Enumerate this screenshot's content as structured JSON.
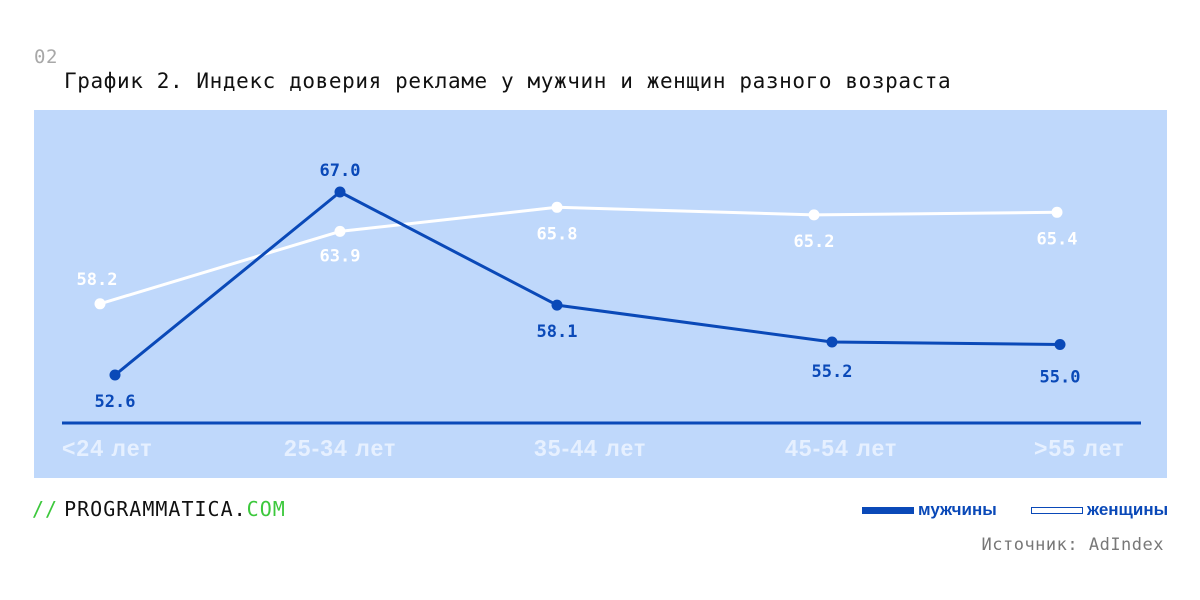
{
  "header": {
    "figure_number": "02",
    "title": "График 2. Индекс доверия рекламе у мужчин и женщин разного возраста"
  },
  "colors": {
    "panel_bg": "#bfd8fb",
    "men": "#0a49b8",
    "women": "#ffffff",
    "axis_label": "#e6f0ff",
    "logo_accent": "#3cc83c",
    "source_text": "#777777"
  },
  "footer": {
    "logo_slashes": "//",
    "logo_main": "PROGRAMMATICA.",
    "logo_tld": "COM",
    "legend": {
      "men": "мужчины",
      "women": "женщины"
    },
    "source": "Источник: AdIndex"
  },
  "chart_data": {
    "type": "line",
    "title": "График 2. Индекс доверия рекламе у мужчин и женщин разного возраста",
    "xlabel": "",
    "ylabel": "",
    "categories": [
      "<24 лет",
      "25-34 лет",
      "35-44 лет",
      "45-54 лет",
      ">55 лет"
    ],
    "series": [
      {
        "name": "мужчины",
        "color": "#0a49b8",
        "values": [
          52.6,
          67.0,
          58.1,
          55.2,
          55.0
        ],
        "labels": [
          "52.6",
          "67.0",
          "58.1",
          "55.2",
          "55.0"
        ]
      },
      {
        "name": "женщины",
        "color": "#ffffff",
        "values": [
          58.2,
          63.9,
          65.8,
          65.2,
          65.4
        ],
        "labels": [
          "58.2",
          "63.9",
          "65.8",
          "65.2",
          "65.4"
        ]
      }
    ],
    "grid": false,
    "legend_position": "bottom-right",
    "data_labels": true
  }
}
